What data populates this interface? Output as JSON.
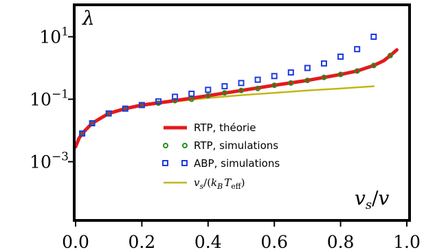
{
  "chart_data": {
    "type": "line",
    "y_scale": "log",
    "xlim": [
      0.0,
      1.0
    ],
    "ylim_log10": [
      -4.8,
      3.0
    ],
    "x_ticks": [
      "0.0",
      "0.2",
      "0.4",
      "0.6",
      "0.8",
      "1.0"
    ],
    "y_ticks": [
      {
        "base": "10",
        "exp": "1",
        "value_log10": 1
      },
      {
        "base": "10",
        "exp": "−1",
        "value_log10": -1
      },
      {
        "base": "10",
        "exp": "−3",
        "value_log10": -3
      }
    ],
    "ylabel": {
      "main": "λ"
    },
    "xlabel": {
      "v1": "v",
      "s1": "s",
      "slash": "/",
      "v2": "v"
    },
    "legend": {
      "placement": "center-right",
      "entries": [
        {
          "label": "RTP, théorie"
        },
        {
          "label": "RTP, simulations"
        },
        {
          "label": "ABP, simulations"
        },
        {
          "label_parts": {
            "v": "v",
            "s": "s",
            "open": "/(",
            "k": "k",
            "b": "B",
            "t": "T",
            "eff": "eff",
            "close": ")"
          }
        }
      ]
    },
    "series": [
      {
        "kind": "line",
        "color": "#e41a1c",
        "x": [
          0.0,
          0.01,
          0.02,
          0.05,
          0.1,
          0.15,
          0.2,
          0.3,
          0.4,
          0.5,
          0.6,
          0.7,
          0.8,
          0.85,
          0.9,
          0.93,
          0.95,
          0.97
        ],
        "y": [
          0.003,
          0.0055,
          0.008,
          0.017,
          0.035,
          0.05,
          0.065,
          0.09,
          0.13,
          0.19,
          0.28,
          0.4,
          0.62,
          0.8,
          1.2,
          1.7,
          2.5,
          3.8
        ]
      },
      {
        "kind": "scatter",
        "marker": "circle",
        "color": "#2a8a1f",
        "x": [
          0.02,
          0.05,
          0.1,
          0.15,
          0.2,
          0.25,
          0.3,
          0.35,
          0.4,
          0.45,
          0.5,
          0.55,
          0.6,
          0.65,
          0.7,
          0.75,
          0.8,
          0.85,
          0.9,
          0.95
        ],
        "y": [
          0.008,
          0.017,
          0.035,
          0.05,
          0.065,
          0.075,
          0.09,
          0.1,
          0.13,
          0.16,
          0.19,
          0.22,
          0.28,
          0.33,
          0.4,
          0.5,
          0.62,
          0.8,
          1.2,
          2.5
        ]
      },
      {
        "kind": "scatter",
        "marker": "square",
        "color": "#1f3ae0",
        "x": [
          0.02,
          0.05,
          0.1,
          0.15,
          0.2,
          0.25,
          0.3,
          0.35,
          0.4,
          0.45,
          0.5,
          0.55,
          0.6,
          0.65,
          0.7,
          0.75,
          0.8,
          0.85,
          0.9
        ],
        "y": [
          0.008,
          0.017,
          0.035,
          0.05,
          0.065,
          0.085,
          0.12,
          0.15,
          0.2,
          0.26,
          0.33,
          0.42,
          0.55,
          0.72,
          1.0,
          1.4,
          2.3,
          4.0,
          10.0
        ]
      },
      {
        "kind": "line",
        "color": "#c2b617",
        "x": [
          0.0,
          0.01,
          0.02,
          0.05,
          0.1,
          0.15,
          0.2,
          0.3,
          0.4,
          0.5,
          0.6,
          0.7,
          0.8,
          0.9
        ],
        "y": [
          0.003,
          0.0055,
          0.008,
          0.017,
          0.034,
          0.048,
          0.06,
          0.085,
          0.11,
          0.135,
          0.16,
          0.19,
          0.22,
          0.26
        ]
      }
    ]
  }
}
